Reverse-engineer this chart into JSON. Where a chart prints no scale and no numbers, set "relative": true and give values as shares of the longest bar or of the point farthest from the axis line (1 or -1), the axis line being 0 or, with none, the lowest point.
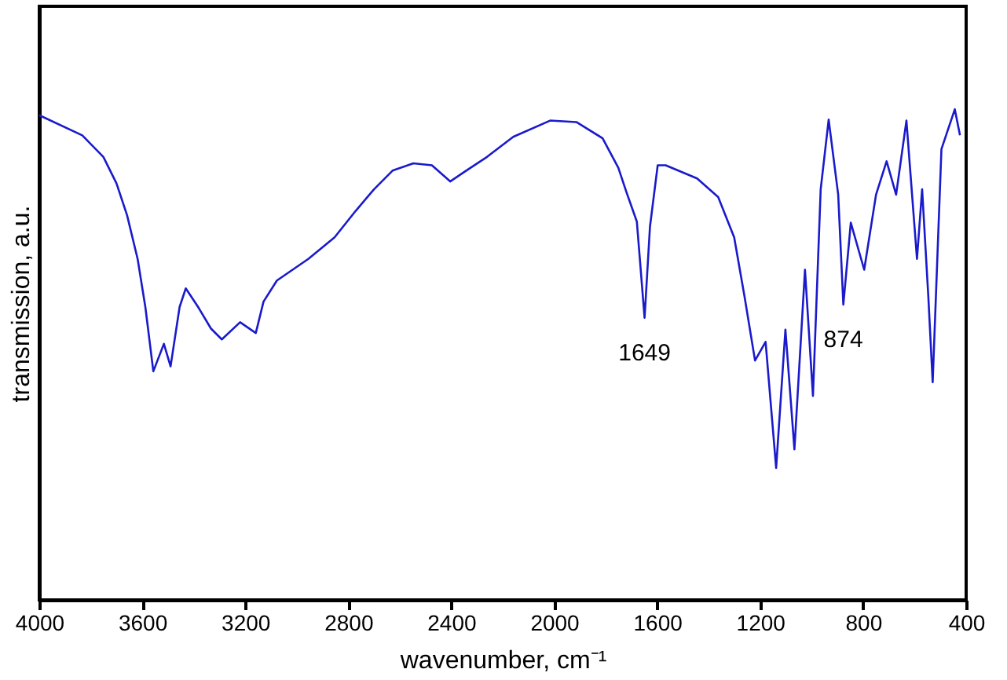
{
  "chart_data": {
    "type": "line",
    "relative": true,
    "xlabel": "wavenumber, cm⁻¹",
    "ylabel": "transmission, a.u.",
    "xlim": [
      4000,
      400
    ],
    "xticks": [
      4000,
      3600,
      3200,
      2800,
      2400,
      2000,
      1600,
      1200,
      800,
      400
    ],
    "grid": false,
    "series": [
      {
        "color": "#1a1acc",
        "x": [
          4000,
          3833,
          3751,
          3700,
          3659,
          3618,
          3588,
          3557,
          3516,
          3490,
          3455,
          3431,
          3383,
          3333,
          3291,
          3220,
          3159,
          3129,
          3077,
          2955,
          2853,
          2771,
          2700,
          2628,
          2547,
          2475,
          2404,
          2342,
          2261,
          2159,
          2016,
          1914,
          1812,
          1751,
          1720,
          1679,
          1649,
          1628,
          1598,
          1567,
          1445,
          1363,
          1301,
          1261,
          1220,
          1179,
          1138,
          1102,
          1067,
          1026,
          995,
          965,
          934,
          897,
          877,
          848,
          796,
          750,
          709,
          672,
          632,
          591,
          571,
          547,
          530,
          496,
          444,
          424
        ],
        "values": [
          0.988,
          0.947,
          0.903,
          0.849,
          0.784,
          0.695,
          0.597,
          0.466,
          0.522,
          0.476,
          0.597,
          0.635,
          0.597,
          0.553,
          0.531,
          0.566,
          0.544,
          0.608,
          0.651,
          0.695,
          0.739,
          0.793,
          0.837,
          0.875,
          0.89,
          0.886,
          0.853,
          0.875,
          0.903,
          0.944,
          0.977,
          0.974,
          0.941,
          0.881,
          0.832,
          0.771,
          0.575,
          0.761,
          0.886,
          0.886,
          0.859,
          0.821,
          0.739,
          0.619,
          0.488,
          0.526,
          0.269,
          0.551,
          0.307,
          0.673,
          0.416,
          0.837,
          0.979,
          0.826,
          0.602,
          0.769,
          0.673,
          0.826,
          0.894,
          0.826,
          0.977,
          0.695,
          0.837,
          0.619,
          0.444,
          0.919,
          1.0,
          0.947
        ]
      }
    ],
    "annotations": [
      {
        "text": "1649",
        "x": 1649,
        "y": 0.575
      },
      {
        "text": "874",
        "x": 877,
        "y": 0.602
      }
    ]
  }
}
